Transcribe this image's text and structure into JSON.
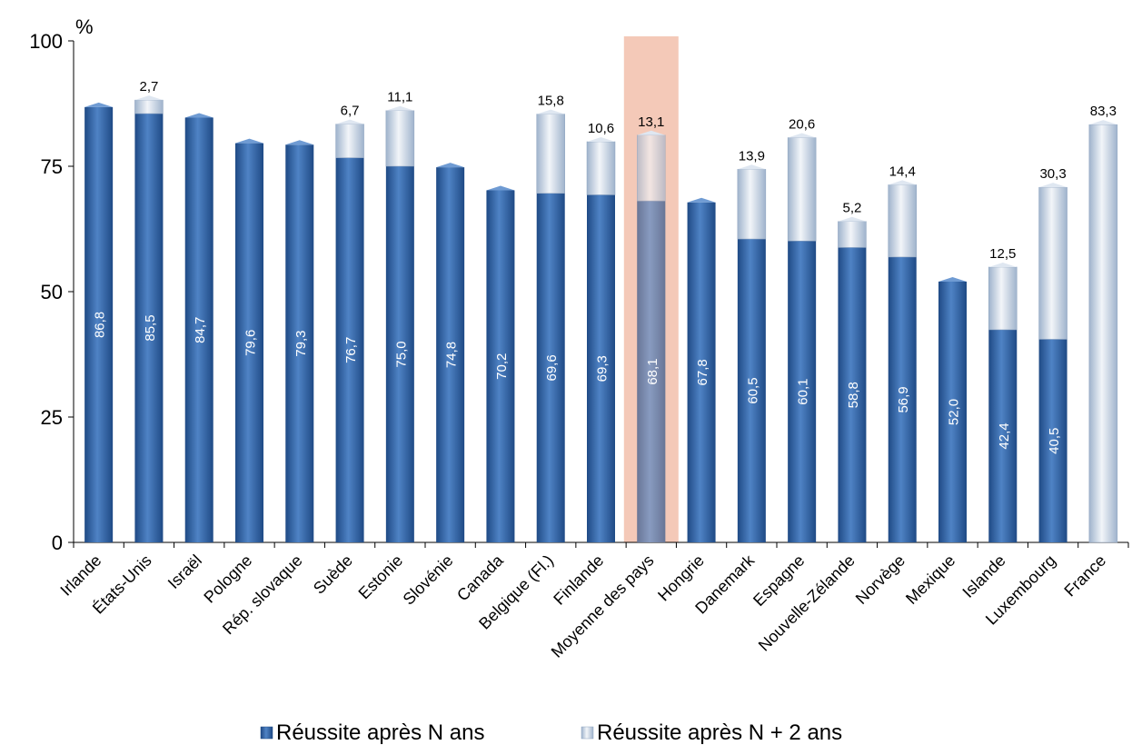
{
  "chart_data": {
    "type": "bar",
    "stacked": true,
    "ylabel": "%",
    "ylim": [
      0,
      100
    ],
    "yticks": [
      0,
      25,
      50,
      75,
      100
    ],
    "categories": [
      "Irlande",
      "États-Unis",
      "Israël",
      "Pologne",
      "Rép. slovaque",
      "Suède",
      "Estonie",
      "Slovénie",
      "Canada",
      "Belgique (Fl.)",
      "Finlande",
      "Moyenne des pays",
      "Hongrie",
      "Danemark",
      "Espagne",
      "Nouvelle-Zélande",
      "Norvège",
      "Mexique",
      "Islande",
      "Luxembourg",
      "France"
    ],
    "series": [
      {
        "name": "Réussite après N ans",
        "values": [
          86.8,
          85.5,
          84.7,
          79.6,
          79.3,
          76.7,
          75.0,
          74.8,
          70.2,
          69.6,
          69.3,
          68.1,
          67.8,
          60.5,
          60.1,
          58.8,
          56.9,
          52.0,
          42.4,
          40.5,
          null
        ]
      },
      {
        "name": "Réussite après N + 2 ans",
        "values": [
          null,
          2.7,
          null,
          null,
          null,
          6.7,
          11.1,
          null,
          null,
          15.8,
          10.6,
          13.1,
          null,
          13.9,
          20.6,
          5.2,
          14.4,
          null,
          12.5,
          30.3,
          83.3
        ]
      }
    ],
    "value_labels_n": [
      "86,8",
      "85,5",
      "84,7",
      "79,6",
      "79,3",
      "76,7",
      "75,0",
      "74,8",
      "70,2",
      "69,6",
      "69,3",
      "68,1",
      "67,8",
      "60,5",
      "60,1",
      "58,8",
      "56,9",
      "52,0",
      "42,4",
      "40,5",
      ""
    ],
    "value_labels_n2": [
      "",
      "2,7",
      "",
      "",
      "",
      "6,7",
      "11,1",
      "",
      "",
      "15,8",
      "10,6",
      "13,1",
      "",
      "13,9",
      "20,6",
      "5,2",
      "14,4",
      "",
      "12,5",
      "30,3",
      "83,3"
    ],
    "highlight_category": "Moyenne des pays",
    "legend_position": "bottom",
    "colors": {
      "series1": "#2e5f9e",
      "series2": "#c7d3e2",
      "highlight": "#f4c9b8"
    }
  }
}
